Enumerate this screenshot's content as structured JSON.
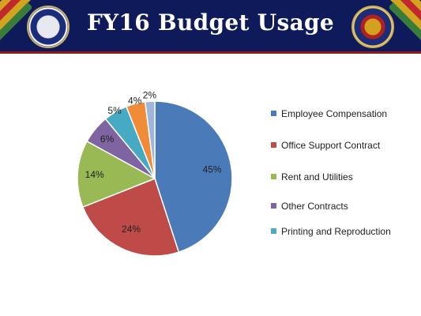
{
  "header": {
    "title": "FY16 Budget Usage",
    "left_seal_icon": "department-of-defense-seal-icon",
    "right_seal_icon": "vietnam-war-commemoration-seal-icon",
    "colors": {
      "banner": "#0f1a5a",
      "accent": "#8b1a1a"
    }
  },
  "chart_data": {
    "type": "pie",
    "title": "",
    "legend_position": "right",
    "categories": [
      "Employee Compensation",
      "Office Support Contract",
      "Rent and Utilities",
      "Other Contracts",
      "Printing and Reproduction",
      "",
      ""
    ],
    "values": [
      45,
      24,
      14,
      6,
      5,
      4,
      2
    ],
    "labels": [
      "45%",
      "24%",
      "14%",
      "6%",
      "5%",
      "4%",
      "2%"
    ],
    "colors": [
      "#4a7ab8",
      "#be4b48",
      "#98b954",
      "#7e64a0",
      "#46aac5",
      "#f08c38",
      "#9db6da"
    ],
    "legend": [
      {
        "label": "Employee Compensation",
        "color": "#4a7ab8"
      },
      {
        "label": "Office Support Contract",
        "color": "#be4b48"
      },
      {
        "label": "Rent and Utilities",
        "color": "#98b954"
      },
      {
        "label": "Other Contracts",
        "color": "#7e64a0"
      },
      {
        "label": "Printing and Reproduction",
        "color": "#46aac5"
      }
    ]
  }
}
